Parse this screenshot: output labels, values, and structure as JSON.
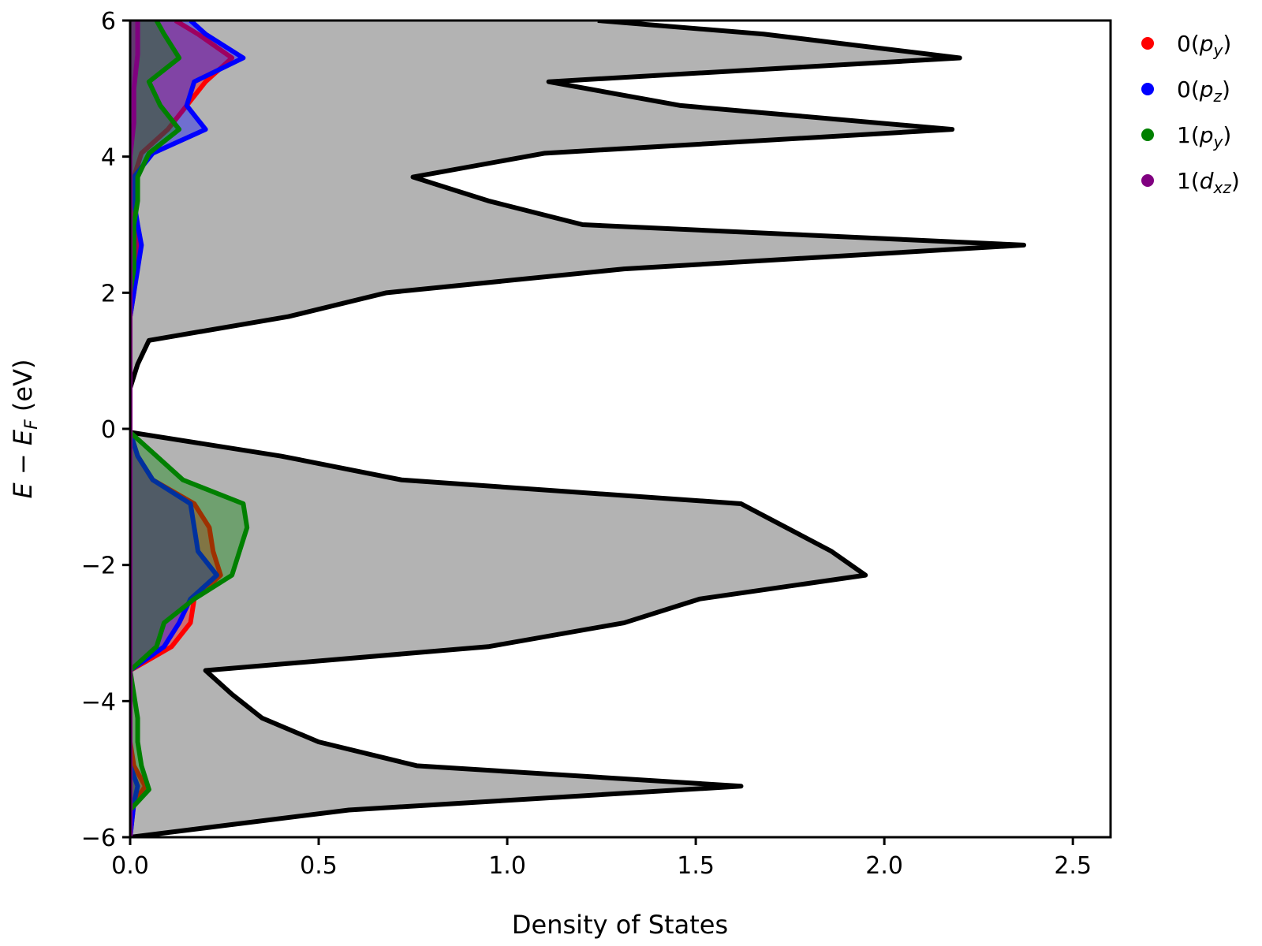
{
  "chart_data": {
    "type": "area",
    "orientation": "horizontal",
    "xlabel": "Density of States",
    "ylabel": {
      "E": "E",
      "minus": " − ",
      "sub_F": "F",
      "unit": " (eV)"
    },
    "xlim": [
      0,
      2.6
    ],
    "ylim": [
      -6,
      6
    ],
    "xticks": [
      {
        "value": 0.0,
        "label": "0.0"
      },
      {
        "value": 0.5,
        "label": "0.5"
      },
      {
        "value": 1.0,
        "label": "1.0"
      },
      {
        "value": 1.5,
        "label": "1.5"
      },
      {
        "value": 2.0,
        "label": "2.0"
      },
      {
        "value": 2.5,
        "label": "2.5"
      }
    ],
    "yticks": [
      {
        "value": -6,
        "label": "−6"
      },
      {
        "value": -4,
        "label": "−4"
      },
      {
        "value": -2,
        "label": "−2"
      },
      {
        "value": 0,
        "label": "0"
      },
      {
        "value": 2,
        "label": "2"
      },
      {
        "value": 4,
        "label": "4"
      },
      {
        "value": 6,
        "label": "6"
      }
    ],
    "grid": false,
    "legend_position": "outside-right",
    "series": [
      {
        "key": "total",
        "color": "#000000",
        "fill": "#b3b3b3",
        "line_width": 6,
        "energy": [
          -6.0,
          -5.6,
          -5.25,
          -4.95,
          -4.6,
          -4.25,
          -3.9,
          -3.55,
          -3.2,
          -2.85,
          -2.5,
          -2.15,
          -1.8,
          -1.45,
          -1.1,
          -0.75,
          -0.4,
          -0.05,
          0.25,
          0.6,
          0.95,
          1.3,
          1.65,
          2.0,
          2.35,
          2.7,
          3.0,
          3.35,
          3.7,
          4.05,
          4.4,
          4.75,
          5.1,
          5.45,
          5.8,
          6.0
        ],
        "dos": [
          0.0,
          0.58,
          1.62,
          0.76,
          0.5,
          0.35,
          0.27,
          0.2,
          0.95,
          1.31,
          1.51,
          1.95,
          1.86,
          1.74,
          1.62,
          0.72,
          0.4,
          0.0,
          0.0,
          0.0,
          0.02,
          0.05,
          0.42,
          0.68,
          1.31,
          2.37,
          1.2,
          0.95,
          0.75,
          1.1,
          2.18,
          1.46,
          1.11,
          2.2,
          1.68,
          1.24
        ]
      },
      {
        "key": "o_py",
        "name": {
          "base": "0(",
          "sym": "p",
          "sub": "y",
          "close": ")"
        },
        "color": "#ff0000",
        "fill": "#ff0000",
        "fill_opacity": 0.38,
        "line_width": 6,
        "energy": [
          -6.0,
          -5.5,
          -5.25,
          -4.95,
          -4.6,
          -4.25,
          -3.9,
          -3.55,
          -3.2,
          -2.85,
          -2.5,
          -2.15,
          -1.8,
          -1.45,
          -1.1,
          -0.75,
          -0.4,
          -0.05,
          0.3,
          0.95,
          1.3,
          1.65,
          2.0,
          2.35,
          2.7,
          3.0,
          3.35,
          3.7,
          4.05,
          4.4,
          4.75,
          5.1,
          5.45,
          5.8,
          6.0
        ],
        "dos": [
          0.0,
          0.01,
          0.04,
          0.01,
          0.0,
          0.0,
          0.0,
          0.0,
          0.11,
          0.16,
          0.17,
          0.24,
          0.22,
          0.21,
          0.17,
          0.06,
          0.02,
          0.0,
          0.0,
          0.0,
          0.0,
          0.0,
          0.01,
          0.01,
          0.02,
          0.01,
          0.01,
          0.01,
          0.03,
          0.1,
          0.15,
          0.2,
          0.27,
          0.18,
          0.12
        ]
      },
      {
        "key": "o_pz",
        "name": {
          "base": "0(",
          "sym": "p",
          "sub": "z",
          "close": ")"
        },
        "color": "#0000ff",
        "fill": "#0000ff",
        "fill_opacity": 0.38,
        "line_width": 6,
        "energy": [
          -6.0,
          -5.5,
          -5.25,
          -4.95,
          -4.6,
          -4.25,
          -3.9,
          -3.55,
          -3.2,
          -2.85,
          -2.5,
          -2.15,
          -1.8,
          -1.45,
          -1.1,
          -0.75,
          -0.4,
          -0.05,
          0.3,
          0.95,
          1.3,
          1.65,
          2.0,
          2.35,
          2.7,
          3.0,
          3.35,
          3.7,
          4.05,
          4.4,
          4.75,
          5.1,
          5.45,
          5.8,
          6.0
        ],
        "dos": [
          0.0,
          0.01,
          0.02,
          0.0,
          0.0,
          0.0,
          0.0,
          0.0,
          0.09,
          0.13,
          0.16,
          0.23,
          0.18,
          0.17,
          0.16,
          0.06,
          0.02,
          0.0,
          0.0,
          0.0,
          0.0,
          0.0,
          0.01,
          0.02,
          0.03,
          0.02,
          0.01,
          0.01,
          0.06,
          0.2,
          0.15,
          0.17,
          0.3,
          0.2,
          0.16
        ]
      },
      {
        "key": "one_py",
        "name": {
          "base": "1(",
          "sym": "p",
          "sub": "y",
          "close": ")"
        },
        "color": "#008000",
        "fill": "#008000",
        "fill_opacity": 0.38,
        "line_width": 6,
        "energy": [
          -6.0,
          -5.6,
          -5.3,
          -4.95,
          -4.6,
          -4.25,
          -3.9,
          -3.55,
          -3.2,
          -2.85,
          -2.5,
          -2.15,
          -1.8,
          -1.45,
          -1.1,
          -0.75,
          -0.4,
          -0.05,
          0.3,
          0.95,
          1.3,
          1.65,
          2.0,
          2.35,
          2.7,
          3.0,
          3.35,
          3.7,
          4.05,
          4.4,
          4.75,
          5.1,
          5.45,
          5.8,
          6.0
        ],
        "dos": [
          0.0,
          0.0,
          0.05,
          0.03,
          0.02,
          0.02,
          0.01,
          0.0,
          0.07,
          0.09,
          0.17,
          0.27,
          0.29,
          0.31,
          0.3,
          0.14,
          0.07,
          0.0,
          0.0,
          0.0,
          0.0,
          0.0,
          0.0,
          0.01,
          0.01,
          0.01,
          0.02,
          0.02,
          0.05,
          0.13,
          0.08,
          0.05,
          0.13,
          0.09,
          0.07
        ]
      },
      {
        "key": "one_dxz",
        "name": {
          "base": "1(",
          "sym": "d",
          "sub": "xz",
          "close": ")"
        },
        "color": "#800080",
        "fill": "#800080",
        "fill_opacity": 0.38,
        "line_width": 6,
        "energy": [
          -6.0,
          -4.0,
          -2.0,
          0.0,
          2.0,
          3.5,
          4.0,
          4.5,
          5.0,
          5.5,
          6.0
        ],
        "dos": [
          0.0,
          0.0,
          0.0,
          0.0,
          0.0,
          0.0,
          0.0,
          0.01,
          0.01,
          0.02,
          0.02
        ]
      }
    ]
  }
}
